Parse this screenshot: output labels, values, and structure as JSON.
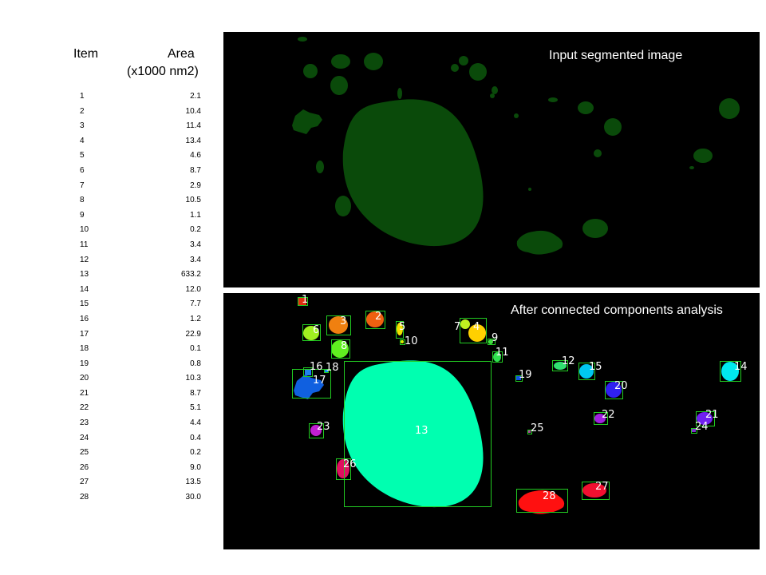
{
  "table": {
    "item_header": "Item",
    "area_header": "Area",
    "unit_header": "(x1000 nm2)",
    "rows": [
      {
        "item": "1",
        "area": "2.1"
      },
      {
        "item": "2",
        "area": "10.4"
      },
      {
        "item": "3",
        "area": "11.4"
      },
      {
        "item": "4",
        "area": "13.4"
      },
      {
        "item": "5",
        "area": "4.6"
      },
      {
        "item": "6",
        "area": "8.7"
      },
      {
        "item": "7",
        "area": "2.9"
      },
      {
        "item": "8",
        "area": "10.5"
      },
      {
        "item": "9",
        "area": "1.1"
      },
      {
        "item": "10",
        "area": "0.2"
      },
      {
        "item": "11",
        "area": "3.4"
      },
      {
        "item": "12",
        "area": "3.4"
      },
      {
        "item": "13",
        "area": "633.2"
      },
      {
        "item": "14",
        "area": "12.0"
      },
      {
        "item": "15",
        "area": "7.7"
      },
      {
        "item": "16",
        "area": "1.2"
      },
      {
        "item": "17",
        "area": "22.9"
      },
      {
        "item": "18",
        "area": "0.1"
      },
      {
        "item": "19",
        "area": "0.8"
      },
      {
        "item": "20",
        "area": "10.3"
      },
      {
        "item": "21",
        "area": "8.7"
      },
      {
        "item": "22",
        "area": "5.1"
      },
      {
        "item": "23",
        "area": "4.4"
      },
      {
        "item": "24",
        "area": "0.4"
      },
      {
        "item": "25",
        "area": "0.2"
      },
      {
        "item": "26",
        "area": "9.0"
      },
      {
        "item": "27",
        "area": "13.5"
      },
      {
        "item": "28",
        "area": "30.0"
      }
    ]
  },
  "panels": {
    "top_title": "Input segmented image",
    "bottom_title": "After connected components analysis"
  },
  "colors": {
    "segment_green": "#0a4a0a",
    "box_green": "#22cc22",
    "background": "#000000"
  },
  "component_labels": [
    "1",
    "2",
    "3",
    "4",
    "5",
    "6",
    "7",
    "8",
    "9",
    "10",
    "11",
    "12",
    "13",
    "14",
    "15",
    "16",
    "17",
    "18",
    "19",
    "20",
    "21",
    "22",
    "23",
    "24",
    "25",
    "26",
    "27",
    "28"
  ],
  "component_colors": {
    "1": "#e03010",
    "2": "#f06010",
    "3": "#f08010",
    "4": "#ffd000",
    "5": "#f0e000",
    "6": "#a0f020",
    "7": "#c0f020",
    "8": "#60f020",
    "9": "#40e040",
    "10": "#e0f000",
    "11": "#30e050",
    "12": "#30e070",
    "13": "#00ffb0",
    "14": "#00e8f0",
    "15": "#00c8f0",
    "16": "#2080f0",
    "17": "#1060e0",
    "18": "#1090f0",
    "19": "#1050e0",
    "20": "#3020f0",
    "21": "#7020f0",
    "22": "#a020e0",
    "23": "#c020d0",
    "24": "#8030d0",
    "25": "#b040a0",
    "26": "#e01060",
    "27": "#f01030",
    "28": "#ff1010"
  }
}
